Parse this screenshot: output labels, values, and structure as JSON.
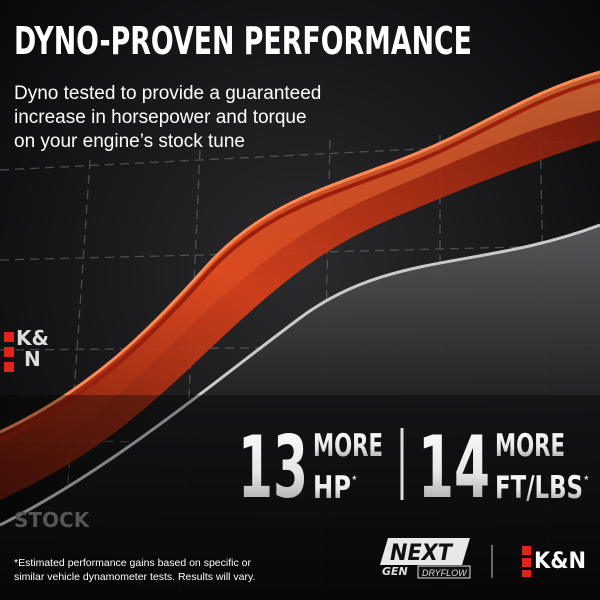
{
  "header": {
    "title": "DYNO-PROVEN PERFORMANCE",
    "subtitle_lines": [
      "Dyno tested to provide a guaranteed",
      "increase in horsepower and torque",
      "on your engine’s stock tune"
    ]
  },
  "graph_labels": {
    "upper": {
      "top": "K&",
      "bottom": "N"
    },
    "lower": "STOCK"
  },
  "stats": [
    {
      "number": 13,
      "word": "MORE",
      "unit": "HP",
      "mark": "*"
    },
    {
      "number": 14,
      "word": "MORE",
      "unit": "FT/LBS",
      "mark": "*"
    }
  ],
  "footnote_lines": [
    "*Estimated performance gains based on specific or",
    "similar vehicle dynamometer tests. Results will vary."
  ],
  "logos": {
    "next": "NEXT",
    "gen": "GEN",
    "dryflow": "DRYFLOW",
    "brand": "K&N"
  }
}
